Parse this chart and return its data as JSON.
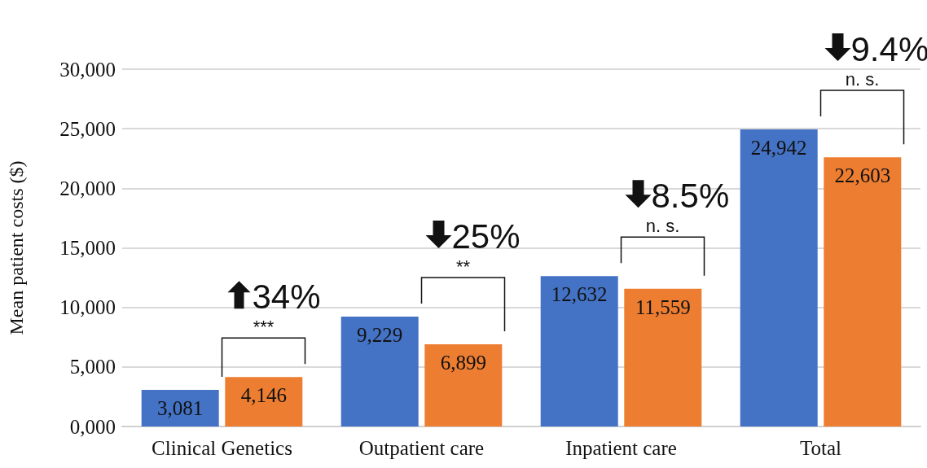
{
  "chart_data": {
    "type": "bar",
    "ylabel": "Mean patient costs ($)",
    "categories": [
      "Clinical Genetics",
      "Outpatient care",
      "Inpatient care",
      "Total"
    ],
    "series": [
      {
        "color": "#4472c4",
        "values": [
          3081,
          9229,
          12632,
          24942
        ],
        "value_labels": [
          "3,081",
          "9,229",
          "12,632",
          "24,942"
        ]
      },
      {
        "color": "#ed7d31",
        "values": [
          4146,
          6899,
          11559,
          22603
        ],
        "value_labels": [
          "4,146",
          "6,899",
          "11,559",
          "22,603"
        ]
      }
    ],
    "ylim": [
      0,
      30000
    ],
    "yticks": [
      {
        "value": 0,
        "label": "0,000"
      },
      {
        "value": 5000,
        "label": "5,000"
      },
      {
        "value": 10000,
        "label": "10,000"
      },
      {
        "value": 15000,
        "label": "15,000"
      },
      {
        "value": 20000,
        "label": "20,000"
      },
      {
        "value": 25000,
        "label": "25,000"
      },
      {
        "value": 30000,
        "label": "30,000"
      }
    ],
    "grid": "y",
    "annotations": [
      "***",
      "34%",
      "**",
      "25%",
      "n. s.",
      "8.5%",
      "n. s.",
      "9.4%"
    ]
  }
}
